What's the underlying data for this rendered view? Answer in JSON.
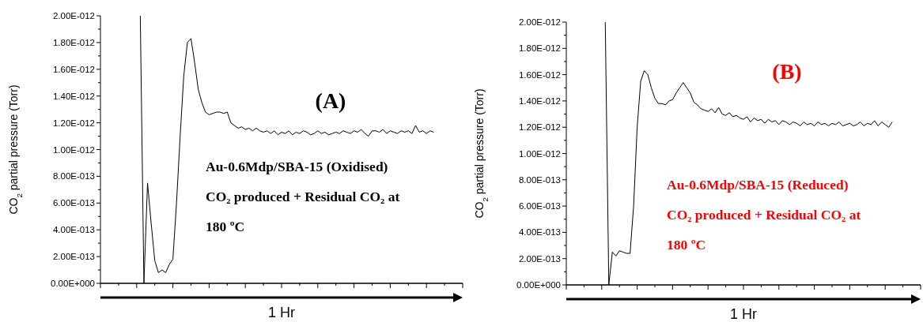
{
  "chart_data": [
    {
      "type": "line",
      "title": "(A)",
      "xlabel": "1 Hr",
      "ylabel": "CO$_{2}$ partial pressure (Torr)",
      "annotations": [
        "Au-0.6Mdp/SBA-15 (Oxidised)",
        "CO₂ produced + Residual CO₂ at",
        "180 ºC"
      ],
      "categories": [
        null,
        null,
        null,
        null,
        null,
        null,
        null,
        null,
        null,
        null,
        null,
        null,
        null,
        null,
        null,
        null,
        null,
        null,
        null,
        null,
        null,
        null,
        null,
        null,
        null,
        null,
        null,
        null,
        null,
        null,
        null,
        null,
        null,
        null,
        null,
        null,
        null,
        null,
        null,
        null,
        null,
        null,
        null,
        null,
        null,
        null,
        null,
        null,
        null,
        null,
        null,
        null,
        null,
        null,
        null,
        null,
        null,
        null,
        null,
        null,
        null,
        null,
        null,
        null,
        null,
        null,
        null,
        null,
        null,
        null,
        null,
        null,
        null,
        null,
        null,
        null,
        null,
        null,
        null,
        null,
        null,
        null,
        null,
        null,
        null,
        null,
        null,
        null,
        null,
        null,
        null,
        null,
        null,
        null,
        null,
        null,
        null,
        null,
        null,
        null,
        null
      ],
      "series": [
        {
          "color": "#000000",
          "values": [
            null,
            null,
            null,
            null,
            null,
            null,
            null,
            null,
            null,
            null,
            null,
            2e-12,
            0,
            7.5e-13,
            4.5e-13,
            1.7e-13,
            8e-14,
            1e-13,
            8e-14,
            1.4e-13,
            1.8e-13,
            6e-13,
            1.1e-12,
            1.55e-12,
            1.8e-12,
            1.83e-12,
            1.65e-12,
            1.45e-12,
            1.35e-12,
            1.28e-12,
            1.26e-12,
            1.27e-12,
            1.28e-12,
            1.28e-12,
            1.27e-12,
            1.28e-12,
            1.2e-12,
            1.18e-12,
            1.16e-12,
            1.17e-12,
            1.15e-12,
            1.16e-12,
            1.14e-12,
            1.16e-12,
            1.14e-12,
            1.13e-12,
            1.14e-12,
            1.12e-12,
            1.14e-12,
            1.11e-12,
            1.13e-12,
            1.12e-12,
            1.14e-12,
            1.11e-12,
            1.13e-12,
            1.12e-12,
            1.14e-12,
            1.13e-12,
            1.11e-12,
            1.12e-12,
            1.14e-12,
            1.12e-12,
            1.13e-12,
            1.11e-12,
            1.12e-12,
            1.13e-12,
            1.12e-12,
            1.14e-12,
            1.13e-12,
            1.12e-12,
            1.14e-12,
            1.13e-12,
            1.15e-12,
            1.12e-12,
            1.1e-12,
            1.14e-12,
            1.14e-12,
            1.13e-12,
            1.15e-12,
            1.12e-12,
            1.14e-12,
            1.13e-12,
            1.12e-12,
            1.14e-12,
            1.13e-12,
            1.14e-12,
            1.12e-12,
            1.18e-12,
            1.13e-12,
            1.14e-12,
            1.12e-12,
            1.14e-12,
            1.13e-12,
            null,
            null,
            null,
            null,
            null,
            null,
            null,
            null
          ]
        }
      ],
      "ylim": [
        0,
        2e-12
      ],
      "yticks": [
        {
          "value": 0,
          "label": "0.00E+000"
        },
        {
          "value": 2e-13,
          "label": "2.00E-013"
        },
        {
          "value": 4e-13,
          "label": "4.00E-013"
        },
        {
          "value": 6e-13,
          "label": "6.00E-013"
        },
        {
          "value": 8e-13,
          "label": "8.00E-013"
        },
        {
          "value": 1e-12,
          "label": "1.00E-012"
        },
        {
          "value": 1.2e-12,
          "label": "1.20E-012"
        },
        {
          "value": 1.4e-12,
          "label": "1.40E-012"
        },
        {
          "value": 1.6e-12,
          "label": "1.60E-012"
        },
        {
          "value": 1.8e-12,
          "label": "1.80E-012"
        },
        {
          "value": 2e-12,
          "label": "2.00E-012"
        }
      ],
      "grid": false,
      "marker": "none",
      "line_style": "solid"
    },
    {
      "type": "line",
      "title": "(B)",
      "xlabel": "1 Hr",
      "ylabel": "CO$_{2}$ partial pressure (Torr)",
      "annotations": [
        "Au-0.6Mdp/SBA-15 (Reduced)",
        "CO₂ produced + Residual CO₂ at",
        "180 ºC"
      ],
      "categories": [
        null,
        null,
        null,
        null,
        null,
        null,
        null,
        null,
        null,
        null,
        null,
        null,
        null,
        null,
        null,
        null,
        null,
        null,
        null,
        null,
        null,
        null,
        null,
        null,
        null,
        null,
        null,
        null,
        null,
        null,
        null,
        null,
        null,
        null,
        null,
        null,
        null,
        null,
        null,
        null,
        null,
        null,
        null,
        null,
        null,
        null,
        null,
        null,
        null,
        null,
        null,
        null,
        null,
        null,
        null,
        null,
        null,
        null,
        null,
        null,
        null,
        null,
        null,
        null,
        null,
        null,
        null,
        null,
        null,
        null,
        null,
        null,
        null,
        null,
        null,
        null,
        null,
        null,
        null,
        null,
        null,
        null,
        null,
        null,
        null,
        null,
        null,
        null,
        null,
        null,
        null,
        null,
        null,
        null,
        null,
        null,
        null,
        null,
        null,
        null,
        null
      ],
      "series": [
        {
          "color": "#000000",
          "values": [
            null,
            null,
            null,
            null,
            null,
            null,
            null,
            null,
            null,
            null,
            null,
            2e-12,
            0,
            2.5e-13,
            2.2e-13,
            2.6e-13,
            2.5e-13,
            2.4e-13,
            2.4e-13,
            6e-13,
            1.2e-12,
            1.55e-12,
            1.63e-12,
            1.6e-12,
            1.5e-12,
            1.42e-12,
            1.38e-12,
            1.38e-12,
            1.37e-12,
            1.4e-12,
            1.41e-12,
            1.46e-12,
            1.5e-12,
            1.54e-12,
            1.5e-12,
            1.46e-12,
            1.39e-12,
            1.37e-12,
            1.34e-12,
            1.33e-12,
            1.32e-12,
            1.34e-12,
            1.31e-12,
            1.35e-12,
            1.3e-12,
            1.29e-12,
            1.31e-12,
            1.28e-12,
            1.29e-12,
            1.27e-12,
            1.26e-12,
            1.28e-12,
            1.24e-12,
            1.27e-12,
            1.25e-12,
            1.26e-12,
            1.23e-12,
            1.26e-12,
            1.24e-12,
            1.25e-12,
            1.22e-12,
            1.25e-12,
            1.24e-12,
            1.22e-12,
            1.24e-12,
            1.23e-12,
            1.21e-12,
            1.24e-12,
            1.22e-12,
            1.23e-12,
            1.21e-12,
            1.24e-12,
            1.22e-12,
            1.23e-12,
            1.21e-12,
            1.23e-12,
            1.22e-12,
            1.24e-12,
            1.21e-12,
            1.22e-12,
            1.23e-12,
            1.21e-12,
            1.22e-12,
            1.24e-12,
            1.21e-12,
            1.23e-12,
            1.22e-12,
            1.25e-12,
            1.21e-12,
            1.24e-12,
            1.22e-12,
            1.2e-12,
            1.24e-12,
            null,
            null,
            null,
            null,
            null,
            null,
            null,
            null
          ]
        }
      ],
      "ylim": [
        0,
        2e-12
      ],
      "yticks": [
        {
          "value": 0,
          "label": "0.00E+000"
        },
        {
          "value": 2e-13,
          "label": "2.00E-013"
        },
        {
          "value": 4e-13,
          "label": "4.00E-013"
        },
        {
          "value": 6e-13,
          "label": "6.00E-013"
        },
        {
          "value": 8e-13,
          "label": "8.00E-013"
        },
        {
          "value": 1e-12,
          "label": "1.00E-012"
        },
        {
          "value": 1.2e-12,
          "label": "1.20E-012"
        },
        {
          "value": 1.4e-12,
          "label": "1.40E-012"
        },
        {
          "value": 1.6e-12,
          "label": "1.60E-012"
        },
        {
          "value": 1.8e-12,
          "label": "1.80E-012"
        },
        {
          "value": 2e-12,
          "label": "2.00E-012"
        }
      ],
      "grid": false,
      "marker": "none",
      "line_style": "solid"
    }
  ]
}
